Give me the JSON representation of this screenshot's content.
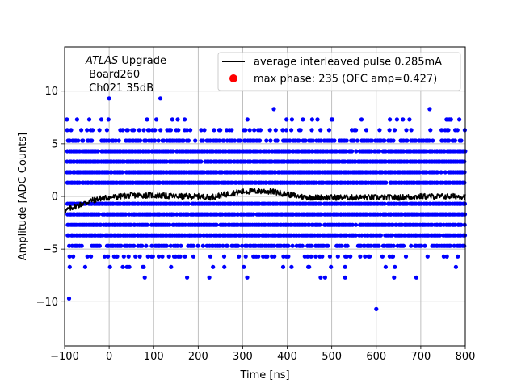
{
  "chart_data": {
    "type": "scatter",
    "xlabel": "Time [ns]",
    "ylabel": "Amplitude [ADC Counts]",
    "xlim": [
      -100,
      800
    ],
    "ylim": [
      -14.2,
      14.2
    ],
    "xticks": [
      -100,
      0,
      100,
      200,
      300,
      400,
      500,
      600,
      700,
      800
    ],
    "yticks": [
      -10,
      -5,
      0,
      5,
      10
    ],
    "xtick_labels": [
      "−100",
      "0",
      "100",
      "200",
      "300",
      "400",
      "500",
      "600",
      "700",
      "800"
    ],
    "ytick_labels": [
      "−10",
      "−5",
      "0",
      "5",
      "10"
    ],
    "grid": true,
    "legend_position": "top-right",
    "annotation": {
      "italic": "ATLAS",
      "rest": " Upgrade",
      "line2": " Board260",
      "line3": " Ch021 35dB"
    },
    "legend": [
      {
        "label": "average interleaved pulse 0.285mA",
        "marker": "line",
        "color": "#000000"
      },
      {
        "label": "max phase: 235 (OFC amp=0.427)",
        "marker": "dot",
        "color": "#ff0000"
      }
    ],
    "sample_levels": {
      "dense": [
        4.3,
        3.3,
        2.3,
        1.3,
        -0.7,
        -1.7,
        -2.7,
        -3.7
      ],
      "sparse": [
        5.3,
        -4.7
      ],
      "rare": [
        6.3,
        -5.7
      ],
      "very_rare": [
        7.3,
        -6.7
      ]
    },
    "outliers": [
      {
        "x": 0,
        "y": 9.3
      },
      {
        "x": 115,
        "y": 9.3
      },
      {
        "x": -90,
        "y": -9.7
      },
      {
        "x": 600,
        "y": -10.7
      },
      {
        "x": 370,
        "y": 8.3
      },
      {
        "x": 720,
        "y": 8.3
      },
      {
        "x": 660,
        "y": 7.3
      },
      {
        "x": 765,
        "y": 7.3
      },
      {
        "x": 85,
        "y": 7.3
      },
      {
        "x": 80,
        "y": -7.7
      },
      {
        "x": 175,
        "y": -7.7
      },
      {
        "x": 225,
        "y": -7.7
      },
      {
        "x": 310,
        "y": -7.7
      },
      {
        "x": 475,
        "y": -7.7
      },
      {
        "x": 485,
        "y": -7.7
      },
      {
        "x": 530,
        "y": -7.7
      },
      {
        "x": 640,
        "y": -7.7
      },
      {
        "x": 690,
        "y": -7.7
      }
    ],
    "series": [
      {
        "name": "average interleaved pulse 0.285mA",
        "color": "#000000",
        "points": [
          [
            -100,
            -1.4
          ],
          [
            -80,
            -1.0
          ],
          [
            -60,
            -0.7
          ],
          [
            -40,
            -0.4
          ],
          [
            -20,
            -0.2
          ],
          [
            0,
            -0.1
          ],
          [
            25,
            0.0
          ],
          [
            50,
            0.1
          ],
          [
            75,
            0.1
          ],
          [
            100,
            0.1
          ],
          [
            150,
            0.0
          ],
          [
            200,
            0.0
          ],
          [
            225,
            -0.1
          ],
          [
            250,
            0.1
          ],
          [
            275,
            0.3
          ],
          [
            300,
            0.45
          ],
          [
            325,
            0.5
          ],
          [
            350,
            0.5
          ],
          [
            375,
            0.4
          ],
          [
            400,
            0.2
          ],
          [
            425,
            0.0
          ],
          [
            450,
            -0.1
          ],
          [
            500,
            -0.1
          ],
          [
            550,
            -0.1
          ],
          [
            600,
            -0.1
          ],
          [
            650,
            -0.1
          ],
          [
            700,
            0.0
          ],
          [
            750,
            0.0
          ],
          [
            800,
            0.0
          ]
        ]
      },
      {
        "name": "max phase: 235 (OFC amp=0.427)",
        "color": "#ff0000",
        "points": []
      }
    ]
  }
}
